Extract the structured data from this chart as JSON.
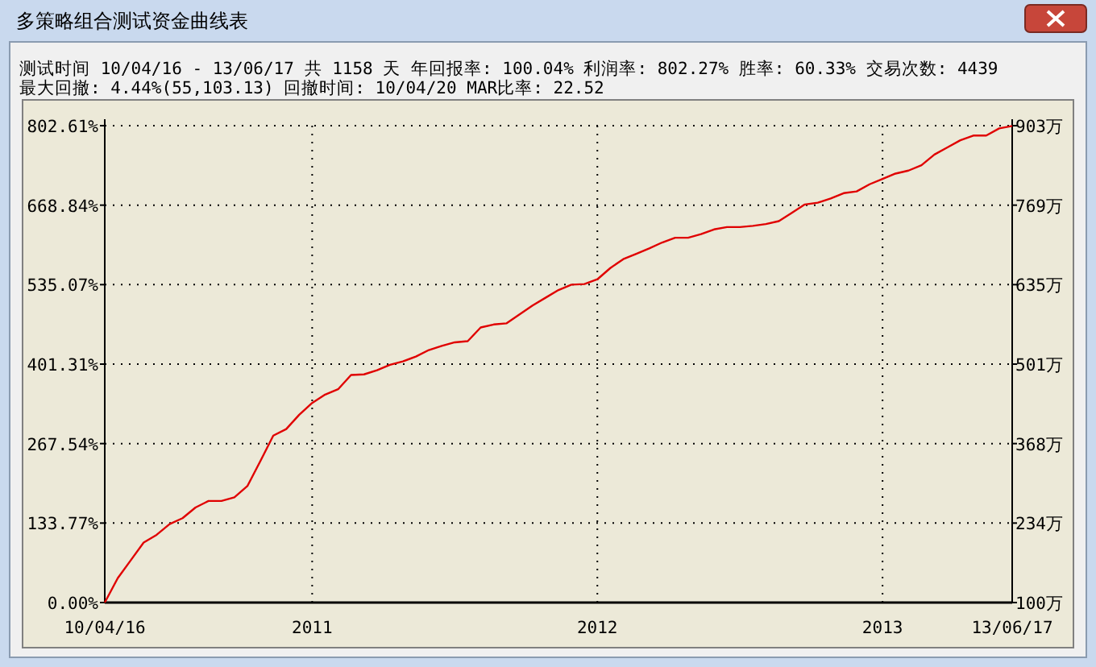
{
  "chart_data": {
    "type": "line",
    "title": "多策略组合测试资金曲线表",
    "annotations": [
      "测试时间 10/04/16 - 13/06/17 共 1158 天 年回报率: 100.04% 利润率: 802.27% 胜率: 60.33% 交易次数: 4439",
      "最大回撤: 4.44%(55,103.13) 回撤时间: 10/04/20 MAR比率: 22.52"
    ],
    "categories": [
      "10/04/16",
      null,
      null,
      null,
      null,
      null,
      null,
      null,
      null,
      null,
      null,
      null,
      null,
      null,
      null,
      null,
      "2011",
      null,
      null,
      null,
      null,
      null,
      null,
      null,
      null,
      null,
      null,
      null,
      null,
      null,
      null,
      null,
      null,
      null,
      null,
      null,
      null,
      null,
      "2012",
      null,
      null,
      null,
      null,
      null,
      null,
      null,
      null,
      null,
      null,
      null,
      null,
      null,
      null,
      null,
      null,
      null,
      null,
      null,
      null,
      null,
      "2013",
      null,
      null,
      null,
      null,
      null,
      null,
      null,
      null,
      null,
      "13/06/17"
    ],
    "series": [
      {
        "color": "#e00000",
        "values": [
          0,
          41,
          71,
          101,
          114,
          132,
          142,
          160,
          171,
          171,
          177,
          196,
          238,
          281,
          292,
          316,
          336,
          350,
          359,
          383,
          384,
          391,
          400,
          406,
          414,
          425,
          432,
          438,
          440,
          463,
          468,
          470,
          485,
          500,
          513,
          526,
          535,
          536,
          544,
          563,
          578,
          587,
          596,
          606,
          614,
          614,
          620,
          628,
          632,
          632,
          634,
          637,
          642,
          656,
          670,
          673,
          680,
          689,
          692,
          704,
          713,
          722,
          727,
          736,
          754,
          766,
          778,
          786,
          786,
          798,
          802
        ]
      }
    ],
    "ylim": [
      0,
      802.61
    ],
    "yticks": [
      {
        "value": 0,
        "label": "0.00%"
      },
      {
        "value": 133.77,
        "label": "133.77%"
      },
      {
        "value": 267.54,
        "label": "267.54%"
      },
      {
        "value": 401.31,
        "label": "401.31%"
      },
      {
        "value": 535.07,
        "label": "535.07%"
      },
      {
        "value": 668.84,
        "label": "668.84%"
      },
      {
        "value": 802.61,
        "label": "802.61%"
      }
    ],
    "y2lim": [
      100,
      902.61
    ],
    "y2ticks": [
      {
        "value": 100,
        "label": "100万"
      },
      {
        "value": 233.77,
        "label": "234万"
      },
      {
        "value": 367.54,
        "label": "368万"
      },
      {
        "value": 501.31,
        "label": "501万"
      },
      {
        "value": 635.07,
        "label": "635万"
      },
      {
        "value": 768.84,
        "label": "769万"
      },
      {
        "value": 902.61,
        "label": "903万"
      }
    ],
    "grid": true
  }
}
